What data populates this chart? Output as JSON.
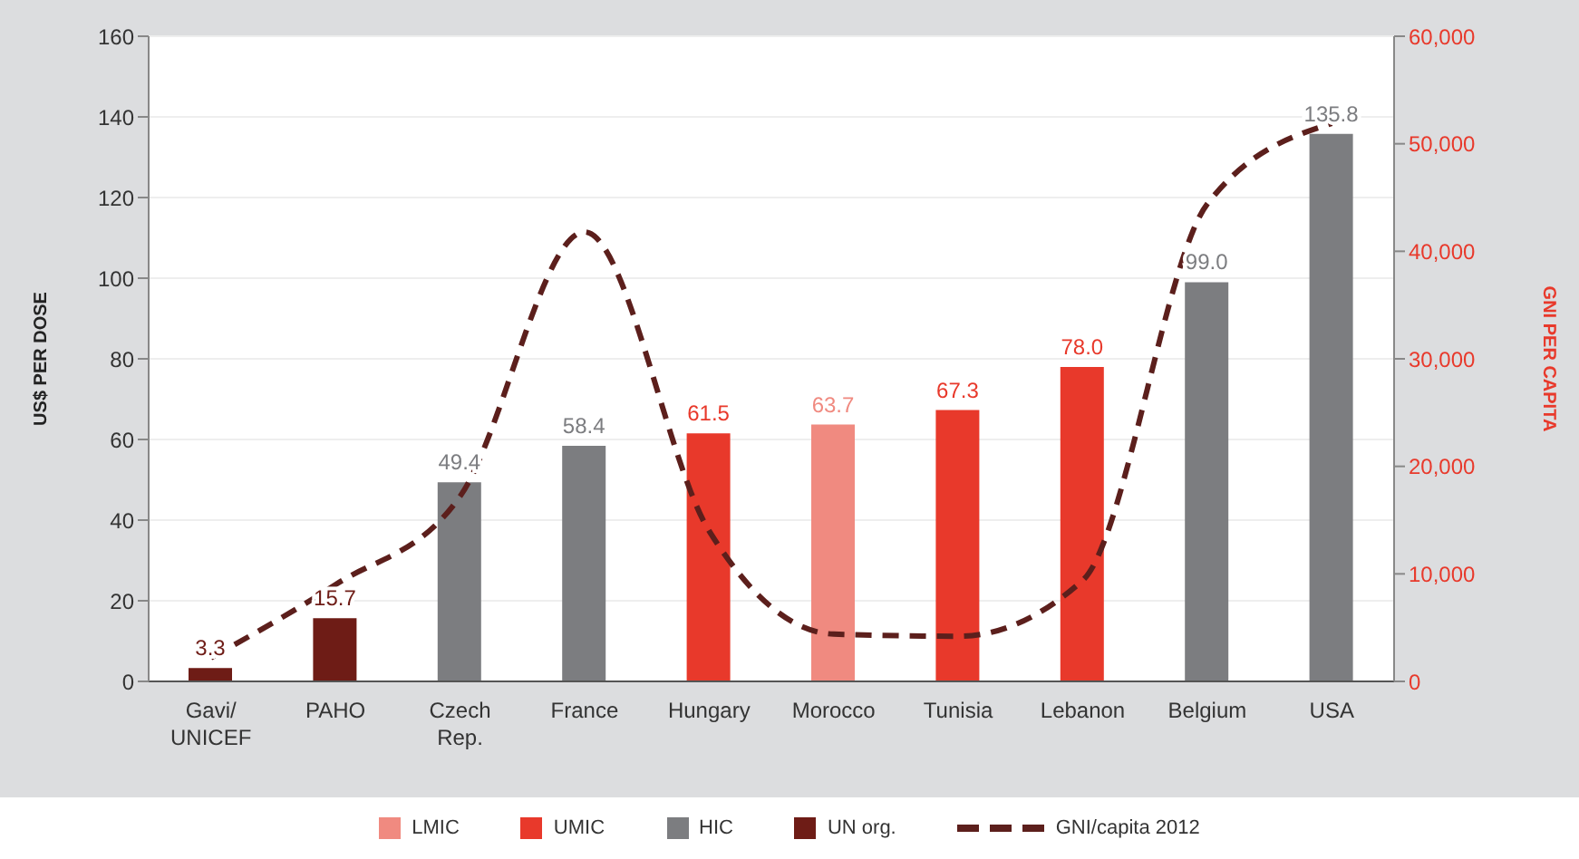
{
  "chart_data": {
    "type": "bar",
    "stacked": true,
    "ylabel": "US$ PER DOSE",
    "y2label": "GNI PER CAPITA",
    "categories": [
      "Gavi/\nUNICEF",
      "PAHO",
      "Czech\nRep.",
      "France",
      "Hungary",
      "Morocco",
      "Tunisia",
      "Lebanon",
      "Belgium",
      "USA"
    ],
    "ylim": [
      0,
      160
    ],
    "yticks": [
      0,
      20,
      40,
      60,
      80,
      100,
      120,
      140,
      160
    ],
    "y2lim": [
      0,
      60000
    ],
    "y2ticks": [
      {
        "value": 0,
        "label": "0"
      },
      {
        "value": 10000,
        "label": "10,000"
      },
      {
        "value": 20000,
        "label": "20,000"
      },
      {
        "value": 30000,
        "label": "30,000"
      },
      {
        "value": 40000,
        "label": "40,000"
      },
      {
        "value": 50000,
        "label": "50,000"
      },
      {
        "value": 60000,
        "label": "60,000"
      }
    ],
    "grid": "y",
    "legend": "bottom",
    "series": [
      {
        "name": "LMIC",
        "color": "#f08a80",
        "values": [
          null,
          null,
          null,
          null,
          null,
          63.7,
          null,
          null,
          null,
          null
        ],
        "value_labels": [
          null,
          null,
          null,
          null,
          null,
          "63.7",
          null,
          null,
          null,
          null
        ]
      },
      {
        "name": "UMIC",
        "color": "#e8392b",
        "values": [
          null,
          null,
          null,
          null,
          61.5,
          null,
          67.3,
          78.0,
          null,
          null
        ],
        "value_labels": [
          null,
          null,
          null,
          null,
          "61.5",
          null,
          "67.3",
          "78.0",
          null,
          null
        ]
      },
      {
        "name": "HIC",
        "color": "#7c7d80",
        "values": [
          null,
          null,
          49.4,
          58.4,
          null,
          null,
          null,
          null,
          99.0,
          135.8
        ],
        "value_labels": [
          null,
          null,
          "49.4",
          "58.4",
          null,
          null,
          null,
          null,
          "99.0",
          "135.8"
        ]
      },
      {
        "name": "UN org.",
        "color": "#6e1c16",
        "values": [
          3.3,
          15.7,
          null,
          null,
          null,
          null,
          null,
          null,
          null,
          null
        ],
        "value_labels": [
          "3.3",
          "15.7",
          null,
          null,
          null,
          null,
          null,
          null,
          null,
          null
        ]
      },
      {
        "name": "GNI/capita 2012",
        "type": "line",
        "axis": "y2",
        "color": "#5c1f1c",
        "line_style": "dashed",
        "marker": "none",
        "values": [
          2200,
          9000,
          17200,
          41800,
          14000,
          4400,
          4200,
          9400,
          44400,
          51900
        ]
      }
    ]
  }
}
